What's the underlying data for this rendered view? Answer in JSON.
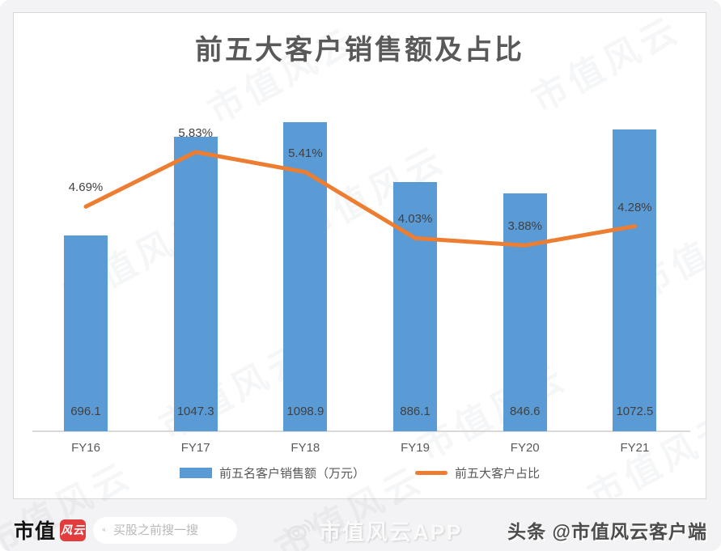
{
  "title": "前五大客户销售额及占比",
  "chart_data": {
    "type": "bar",
    "title": "前五大客户销售额及占比",
    "xlabel": "",
    "ylabel": "",
    "categories": [
      "FY16",
      "FY17",
      "FY18",
      "FY19",
      "FY20",
      "FY21"
    ],
    "series": [
      {
        "name": "前五名客户销售额（万元）",
        "type": "bar",
        "color": "#5b9bd5",
        "values": [
          696.1,
          1047.3,
          1098.9,
          886.1,
          846.6,
          1072.5
        ],
        "labels": [
          "696.1",
          "1047.3",
          "1098.9",
          "886.1",
          "846.6",
          "1072.5"
        ]
      },
      {
        "name": "前五大客户占比",
        "type": "line",
        "color": "#ed7d31",
        "unit": "%",
        "values": [
          4.69,
          5.83,
          5.41,
          4.03,
          3.88,
          4.28
        ],
        "labels": [
          "4.69%",
          "5.83%",
          "5.41%",
          "4.03%",
          "3.88%",
          "4.28%"
        ]
      }
    ],
    "bar_axis": {
      "min": 0,
      "implied_max": 1240
    },
    "line_axis": {
      "min": 0,
      "unit": "%"
    },
    "grid": false,
    "legend_position": "bottom"
  },
  "watermark": {
    "diagonal_text": "市值风云"
  },
  "footer": {
    "logo_text": "市值",
    "logo_badge_text": "风云",
    "search_placeholder": "买股之前搜一搜",
    "app_watermark_text": "市值风云APP",
    "byline_text": "头条 @市值风云客户端"
  },
  "colors": {
    "bar": "#5b9bd5",
    "line": "#ed7d31",
    "title_text": "#595959",
    "data_label": "#404040",
    "axis_line": "#d9d9d9",
    "logo_badge_bg": "#e23c3c"
  }
}
